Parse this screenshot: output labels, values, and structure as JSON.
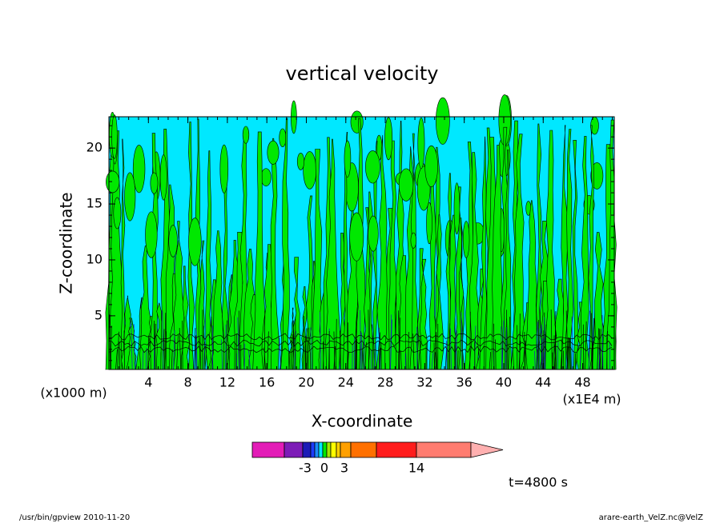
{
  "chart_data": {
    "type": "contour",
    "title": "vertical velocity",
    "x_label": "X-coordinate",
    "y_label": "Z-coordinate",
    "x_unit_left": "(x1000 m)",
    "x_unit_right": "(x1E4 m)",
    "time_label": "t=4800 s",
    "footer_left": "/usr/bin/gpview   2010-11-20",
    "footer_right": "arare-earth_VelZ.nc@VelZ",
    "xlim": [
      0,
      51.2
    ],
    "xticks": [
      4,
      8,
      12,
      16,
      20,
      24,
      28,
      32,
      36,
      40,
      44,
      48
    ],
    "ylim": [
      0.2,
      22.8
    ],
    "yticks": [
      5,
      10,
      15,
      20
    ],
    "colorbar_colors": [
      "#e31cb7",
      "#7d1cb7",
      "#1c1cb7",
      "#1c3cff",
      "#1c8cff",
      "#00e8ff",
      "#00e800",
      "#a0e800",
      "#ffff00",
      "#ffd000",
      "#ffa000",
      "#ff7000",
      "#ff1c1c",
      "#ff7c70",
      "#ffb0b0"
    ],
    "colorbar_ticks": [
      -3,
      0,
      3,
      14
    ]
  }
}
